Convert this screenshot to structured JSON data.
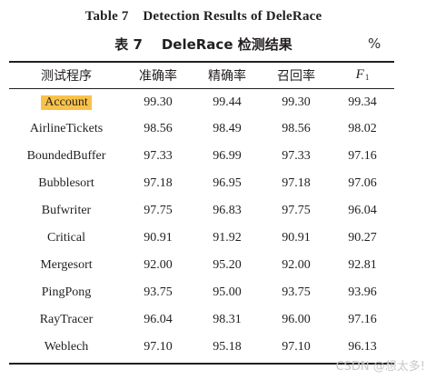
{
  "caption": {
    "english": "Table 7    Detection Results of DeleRace",
    "chinese": "表 7    DeleRace 检测结果",
    "unit": "%"
  },
  "table": {
    "headers": {
      "program": "测试程序",
      "accuracy": "准确率",
      "precision": "精确率",
      "recall": "召回率",
      "f1_main": "F",
      "f1_sub": "1"
    },
    "rows": [
      {
        "program": "Account",
        "accuracy": "99.30",
        "precision": "99.44",
        "recall": "99.30",
        "f1": "99.34",
        "highlighted": true
      },
      {
        "program": "AirlineTickets",
        "accuracy": "98.56",
        "precision": "98.49",
        "recall": "98.56",
        "f1": "98.02"
      },
      {
        "program": "BoundedBuffer",
        "accuracy": "97.33",
        "precision": "96.99",
        "recall": "97.33",
        "f1": "97.16"
      },
      {
        "program": "Bubblesort",
        "accuracy": "97.18",
        "precision": "96.95",
        "recall": "97.18",
        "f1": "97.06"
      },
      {
        "program": "Bufwriter",
        "accuracy": "97.75",
        "precision": "96.83",
        "recall": "97.75",
        "f1": "96.04"
      },
      {
        "program": "Critical",
        "accuracy": "90.91",
        "precision": "91.92",
        "recall": "90.91",
        "f1": "90.27"
      },
      {
        "program": "Mergesort",
        "accuracy": "92.00",
        "precision": "95.20",
        "recall": "92.00",
        "f1": "92.81"
      },
      {
        "program": "PingPong",
        "accuracy": "93.75",
        "precision": "95.00",
        "recall": "93.75",
        "f1": "93.96"
      },
      {
        "program": "RayTracer",
        "accuracy": "96.04",
        "precision": "98.31",
        "recall": "96.00",
        "f1": "97.16"
      },
      {
        "program": "Weblech",
        "accuracy": "97.10",
        "precision": "95.18",
        "recall": "97.10",
        "f1": "96.13"
      }
    ]
  },
  "colors": {
    "highlight": "#f8c24a",
    "text": "#231f20",
    "watermark": "#c8c8c8"
  },
  "watermark": "CSDN @想太多!"
}
